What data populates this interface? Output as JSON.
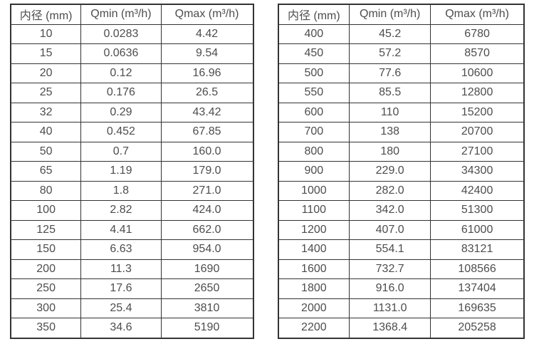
{
  "colors": {
    "background": "#ffffff",
    "border": "#333333",
    "text": "#4d4d4d"
  },
  "left_table": {
    "headers": [
      "内径 (mm)",
      "Qmin (m³/h)",
      "Qmax (m³/h)"
    ],
    "rows": [
      [
        "10",
        "0.0283",
        "4.42"
      ],
      [
        "15",
        "0.0636",
        "9.54"
      ],
      [
        "20",
        "0.12",
        "16.96"
      ],
      [
        "25",
        "0.176",
        "26.5"
      ],
      [
        "32",
        "0.29",
        "43.42"
      ],
      [
        "40",
        "0.452",
        "67.85"
      ],
      [
        "50",
        "0.7",
        "160.0"
      ],
      [
        "65",
        "1.19",
        "179.0"
      ],
      [
        "80",
        "1.8",
        "271.0"
      ],
      [
        "100",
        "2.82",
        "424.0"
      ],
      [
        "125",
        "4.41",
        "662.0"
      ],
      [
        "150",
        "6.63",
        "954.0"
      ],
      [
        "200",
        "11.3",
        "1690"
      ],
      [
        "250",
        "17.6",
        "2650"
      ],
      [
        "300",
        "25.4",
        "3810"
      ],
      [
        "350",
        "34.6",
        "5190"
      ]
    ]
  },
  "right_table": {
    "headers": [
      "内径 (mm)",
      "Qmin (m³/h)",
      "Qmax (m³/h)"
    ],
    "rows": [
      [
        "400",
        "45.2",
        "6780"
      ],
      [
        "450",
        "57.2",
        "8570"
      ],
      [
        "500",
        "77.6",
        "10600"
      ],
      [
        "550",
        "85.5",
        "12800"
      ],
      [
        "600",
        "110",
        "15200"
      ],
      [
        "700",
        "138",
        "20700"
      ],
      [
        "800",
        "180",
        "27100"
      ],
      [
        "900",
        "229.0",
        "34300"
      ],
      [
        "1000",
        "282.0",
        "42400"
      ],
      [
        "1100",
        "342.0",
        "51300"
      ],
      [
        "1200",
        "407.0",
        "61000"
      ],
      [
        "1400",
        "554.1",
        "83121"
      ],
      [
        "1600",
        "732.7",
        "108566"
      ],
      [
        "1800",
        "916.0",
        "137404"
      ],
      [
        "2000",
        "1131.0",
        "169635"
      ],
      [
        "2200",
        "1368.4",
        "205258"
      ]
    ]
  }
}
